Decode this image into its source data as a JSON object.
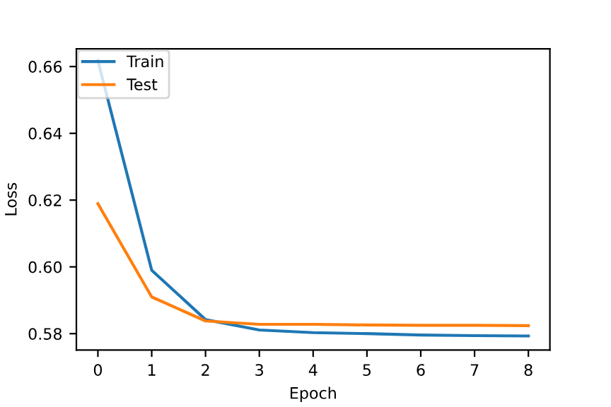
{
  "chart_data": {
    "type": "line",
    "xlabel": "Epoch",
    "ylabel": "Loss",
    "x": [
      0,
      1,
      2,
      3,
      4,
      5,
      6,
      7,
      8
    ],
    "series": [
      {
        "name": "Train",
        "color": "#1f77b4",
        "values": [
          0.6618,
          0.599,
          0.5842,
          0.5811,
          0.5803,
          0.58,
          0.5796,
          0.5794,
          0.5793
        ]
      },
      {
        "name": "Test",
        "color": "#ff7f0e",
        "values": [
          0.6189,
          0.591,
          0.5838,
          0.5828,
          0.5828,
          0.5826,
          0.5825,
          0.5825,
          0.5824
        ]
      }
    ],
    "xlim": [
      -0.4,
      8.4
    ],
    "xticks": [
      0,
      1,
      2,
      3,
      4,
      5,
      6,
      7,
      8
    ],
    "ylim": [
      0.5751,
      0.6653
    ],
    "yticks": [
      {
        "value": 0.58,
        "label": "0.58"
      },
      {
        "value": 0.6,
        "label": "0.60"
      },
      {
        "value": 0.62,
        "label": "0.62"
      },
      {
        "value": 0.64,
        "label": "0.64"
      },
      {
        "value": 0.66,
        "label": "0.66"
      }
    ],
    "grid": false,
    "legend": "top left",
    "marker": "none",
    "line_style": "solid"
  }
}
